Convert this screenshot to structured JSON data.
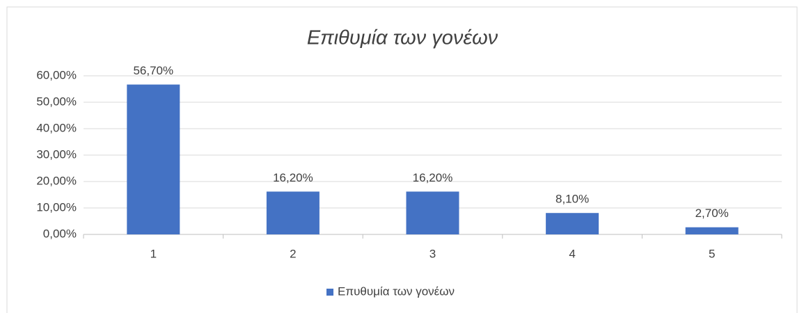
{
  "chart_data": {
    "type": "bar",
    "title": "Επιθυμία των γονέων",
    "categories": [
      "1",
      "2",
      "3",
      "4",
      "5"
    ],
    "series": [
      {
        "name": "Επυθυμία των γονέων",
        "color": "#4472c4",
        "values": [
          56.7,
          16.2,
          16.2,
          8.1,
          2.7
        ],
        "value_labels": [
          "56,70%",
          "16,20%",
          "16,20%",
          "8,10%",
          "2,70%"
        ]
      }
    ],
    "ylim": [
      0,
      60
    ],
    "yticks": [
      {
        "value": 0,
        "label": "0,00%"
      },
      {
        "value": 10,
        "label": "10,00%"
      },
      {
        "value": 20,
        "label": "20,00%"
      },
      {
        "value": 30,
        "label": "30,00%"
      },
      {
        "value": 40,
        "label": "40,00%"
      },
      {
        "value": 50,
        "label": "50,00%"
      },
      {
        "value": 60,
        "label": "60,00%"
      }
    ],
    "grid": true,
    "legend": "bottom"
  }
}
